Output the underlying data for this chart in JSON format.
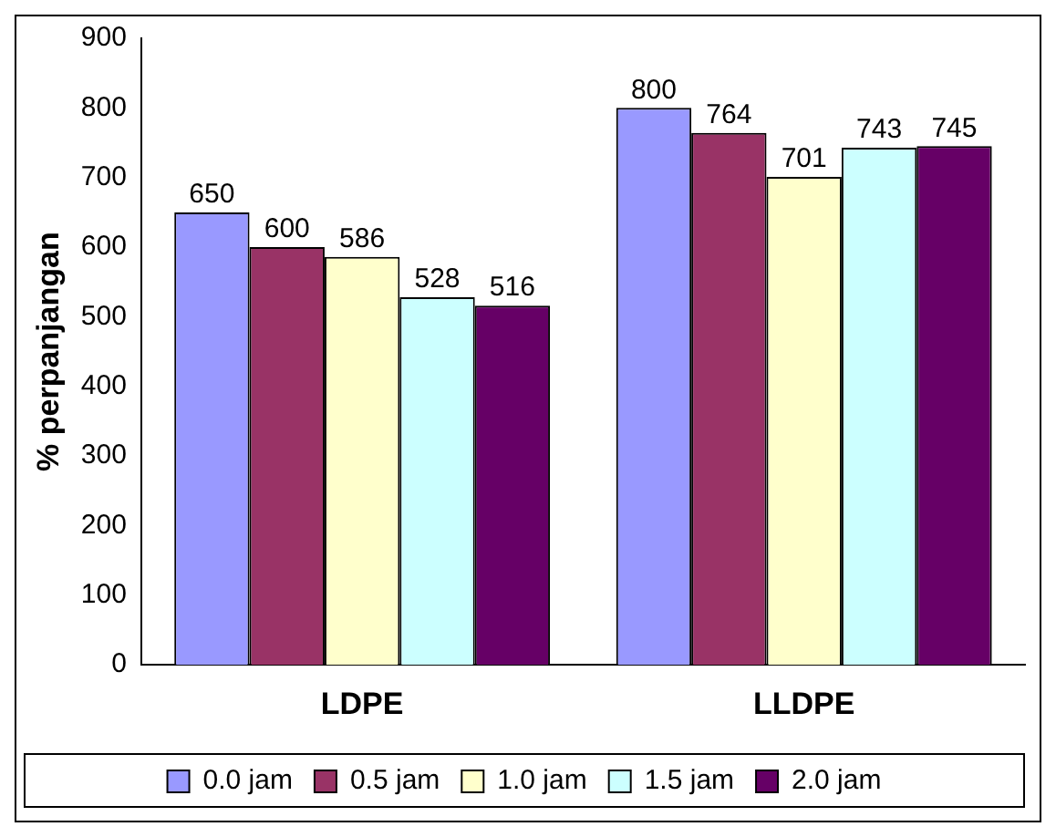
{
  "chart_data": {
    "type": "bar",
    "ylabel": "% perpanjangan",
    "categories": [
      "LDPE",
      "LLDPE"
    ],
    "series": [
      {
        "name": "0.0 jam",
        "color": "#9999ff",
        "values": [
          650,
          800
        ]
      },
      {
        "name": "0.5 jam",
        "color": "#993366",
        "values": [
          600,
          764
        ]
      },
      {
        "name": "1.0 jam",
        "color": "#ffffcc",
        "values": [
          586,
          701
        ]
      },
      {
        "name": "1.5 jam",
        "color": "#ccffff",
        "values": [
          528,
          743
        ]
      },
      {
        "name": "2.0 jam",
        "color": "#660066",
        "values": [
          516,
          745
        ]
      }
    ],
    "ylim": [
      0,
      900
    ],
    "yticks": [
      0,
      100,
      200,
      300,
      400,
      500,
      600,
      700,
      800,
      900
    ],
    "grid": false,
    "legend": "bottom",
    "data_labels": true
  }
}
